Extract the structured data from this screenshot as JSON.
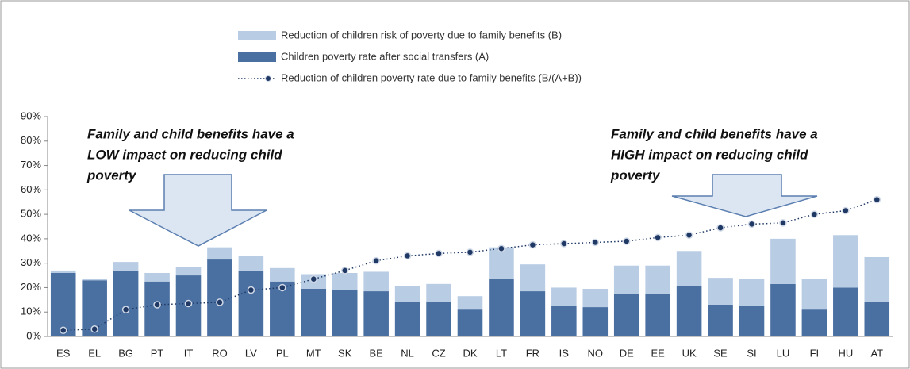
{
  "chart_data": {
    "type": "bar",
    "categories": [
      "ES",
      "EL",
      "BG",
      "PT",
      "IT",
      "RO",
      "LV",
      "PL",
      "MT",
      "SK",
      "BE",
      "NL",
      "CZ",
      "DK",
      "LT",
      "FR",
      "IS",
      "NO",
      "DE",
      "EE",
      "UK",
      "SE",
      "SI",
      "LU",
      "FI",
      "HU",
      "AT"
    ],
    "series": [
      {
        "name": "Reduction of children risk of poverty due to family benefits (B)",
        "color": "#b8cce4",
        "type": "bar",
        "values": [
          1,
          0.5,
          3.5,
          3.5,
          3.5,
          5,
          6,
          5.5,
          6,
          7,
          8,
          6.5,
          7.5,
          5.5,
          13,
          11,
          7.5,
          7.5,
          11.5,
          11.5,
          14.5,
          11,
          11,
          18.5,
          12.5,
          21.5,
          18.5
        ]
      },
      {
        "name": "Children poverty rate after social transfers (A)",
        "color": "#4a6fa1",
        "type": "bar",
        "values": [
          26,
          23,
          27,
          22.5,
          25,
          31.5,
          27,
          22.5,
          19.5,
          19,
          18.5,
          14,
          14,
          11,
          23.5,
          18.5,
          12.5,
          12,
          17.5,
          17.5,
          20.5,
          13,
          12.5,
          21.5,
          11,
          20,
          14
        ]
      },
      {
        "name": "Reduction of children poverty rate due to family benefits (B/(A+B))",
        "color": "#1f3864",
        "type": "line",
        "values": [
          2.5,
          3,
          11,
          13,
          13.5,
          14,
          19,
          20,
          23.5,
          27,
          31,
          33,
          34,
          34.5,
          36,
          37.5,
          38,
          38.5,
          39,
          40.5,
          41.5,
          44.5,
          46,
          46.5,
          50,
          51.5,
          56
        ]
      }
    ],
    "ylim": [
      0,
      90
    ],
    "yticks": [
      {
        "value": 0,
        "label": "0%"
      },
      {
        "value": 10,
        "label": "10%"
      },
      {
        "value": 20,
        "label": "20%"
      },
      {
        "value": 30,
        "label": "30%"
      },
      {
        "value": 40,
        "label": "40%"
      },
      {
        "value": 50,
        "label": "50%"
      },
      {
        "value": 60,
        "label": "60%"
      },
      {
        "value": 70,
        "label": "70%"
      },
      {
        "value": 80,
        "label": "80%"
      },
      {
        "value": 90,
        "label": "90%"
      }
    ],
    "grid": false,
    "annotations": [
      {
        "lines": [
          "Family and child benefits  have a",
          "LOW impact on reducing child",
          "poverty"
        ]
      },
      {
        "lines": [
          "Family and child benefits  have a",
          "HIGH impact on reducing child",
          "poverty"
        ]
      }
    ]
  }
}
